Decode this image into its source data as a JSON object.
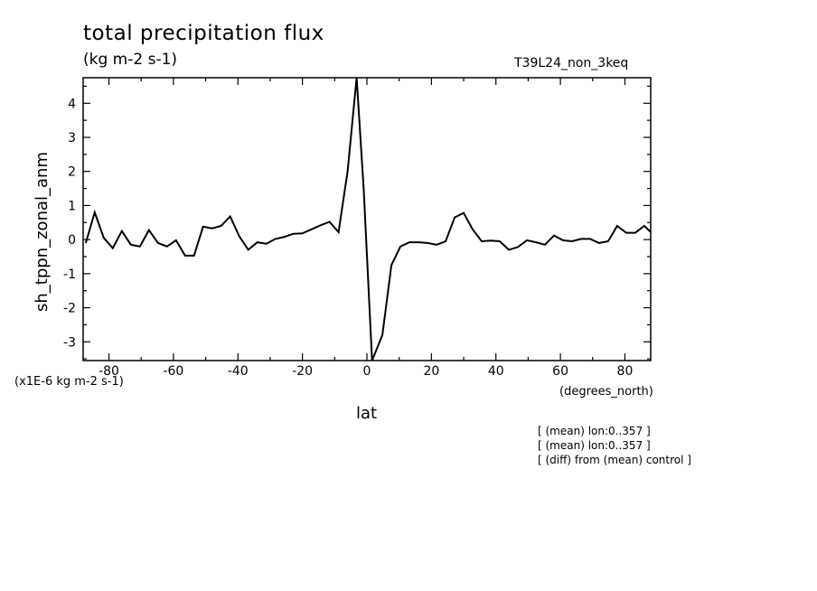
{
  "header": {
    "title": "total precipitation flux",
    "units": "(kg m-2 s-1)",
    "run_id": "T39L24_non_3keq"
  },
  "footer": {
    "scale_note": "(x1E-6 kg m-2 s-1)",
    "x_unit": "(degrees_north)",
    "notes": [
      "[ (mean) lon:0..357 ]",
      "[ (mean) lon:0..357 ]",
      "[ (diff) from (mean) control ]"
    ]
  },
  "chart_data": {
    "type": "line",
    "title": "total precipitation flux",
    "xlabel": "lat",
    "ylabel": "sh_tppn_zonal_anm",
    "xlim": [
      -88,
      88
    ],
    "ylim": [
      -3.55,
      4.75
    ],
    "grid": false,
    "x_ticks": [
      -80,
      -60,
      -40,
      -20,
      0,
      20,
      40,
      60,
      80
    ],
    "y_ticks": [
      -3,
      -2,
      -1,
      0,
      1,
      2,
      3,
      4
    ],
    "x_tick_labels": [
      "-80",
      "-60",
      "-40",
      "-20",
      "0",
      "20",
      "40",
      "60",
      "80"
    ],
    "y_tick_labels": [
      "-3",
      "-2",
      "-1",
      "0",
      "1",
      "2",
      "3",
      "4"
    ],
    "series": [
      {
        "x": [
          -87.2,
          -84.4,
          -81.6,
          -78.8,
          -76.0,
          -73.2,
          -70.4,
          -67.6,
          -64.8,
          -62.0,
          -59.2,
          -56.4,
          -53.6,
          -50.8,
          -48.0,
          -45.2,
          -42.4,
          -39.6,
          -36.8,
          -34.0,
          -31.2,
          -28.4,
          -25.6,
          -22.8,
          -20.0,
          -17.2,
          -14.4,
          -11.6,
          -8.8,
          -6.0,
          -3.2,
          -1.0,
          1.6,
          4.8,
          7.6,
          10.4,
          13.2,
          16.0,
          18.8,
          21.6,
          24.4,
          27.2,
          30.0,
          32.8,
          35.6,
          38.4,
          41.2,
          44.0,
          46.8,
          49.6,
          52.4,
          55.2,
          58.0,
          60.8,
          63.6,
          66.4,
          69.2,
          72.0,
          74.8,
          77.6,
          80.4,
          83.2,
          86.0,
          88.0
        ],
        "y": [
          -0.1,
          0.8,
          0.05,
          -0.25,
          0.25,
          -0.15,
          -0.2,
          0.28,
          -0.1,
          -0.2,
          -0.02,
          -0.47,
          -0.47,
          0.38,
          0.33,
          0.4,
          0.68,
          0.1,
          -0.3,
          -0.08,
          -0.12,
          0.02,
          0.08,
          0.17,
          0.18,
          0.3,
          0.42,
          0.52,
          0.22,
          2.0,
          4.75,
          1.5,
          -3.55,
          -2.8,
          -0.75,
          -0.2,
          -0.08,
          -0.08,
          -0.1,
          -0.15,
          -0.05,
          0.65,
          0.78,
          0.3,
          -0.05,
          -0.03,
          -0.05,
          -0.3,
          -0.22,
          -0.02,
          -0.08,
          -0.15,
          0.12,
          -0.02,
          -0.05,
          0.02,
          0.02,
          -0.1,
          -0.05,
          0.4,
          0.2,
          0.2,
          0.4,
          0.22
        ]
      }
    ]
  }
}
